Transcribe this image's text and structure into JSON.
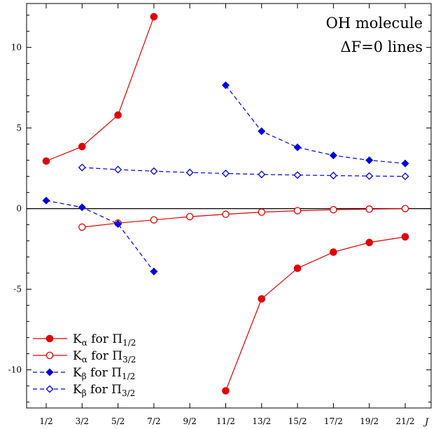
{
  "chart_data": {
    "type": "line",
    "title": "",
    "annotation": [
      "OH molecule",
      "ΔF=0 lines"
    ],
    "xlabel": "J",
    "ylabel": "",
    "categories": [
      "1/2",
      "3/2",
      "5/2",
      "7/2",
      "9/2",
      "11/2",
      "13/2",
      "15/2",
      "17/2",
      "19/2",
      "21/2"
    ],
    "yticks": [
      10,
      5,
      0,
      -5,
      -10
    ],
    "ylim": [
      -12.4,
      12.4
    ],
    "grid": false,
    "zero_line": true,
    "legend_position": "bottom-left",
    "series": [
      {
        "name": "Kα for Π1/2",
        "label_main": "K",
        "label_sub1": "α",
        "label_mid": " for Π",
        "label_sub2": "1/2",
        "color": "#e00000",
        "dashed": false,
        "marker": "filled-circle",
        "points": [
          [
            0,
            2.95
          ],
          [
            1,
            3.85
          ],
          [
            2,
            5.8
          ],
          [
            3,
            11.9
          ]
        ]
      },
      {
        "name": "Kα for Π1/2",
        "legend": false,
        "color": "#e00000",
        "dashed": false,
        "marker": "filled-circle",
        "points": [
          [
            5,
            -11.3
          ],
          [
            6,
            -5.6
          ],
          [
            7,
            -3.7
          ],
          [
            8,
            -2.7
          ],
          [
            9,
            -2.1
          ],
          [
            10,
            -1.75
          ]
        ]
      },
      {
        "name": "Kα for Π3/2",
        "label_main": "K",
        "label_sub1": "α",
        "label_mid": " for Π",
        "label_sub2": "3/2",
        "color": "#e00000",
        "dashed": false,
        "marker": "open-circle",
        "points": [
          [
            1,
            -1.15
          ],
          [
            2,
            -0.9
          ],
          [
            3,
            -0.7
          ],
          [
            4,
            -0.5
          ],
          [
            5,
            -0.35
          ],
          [
            6,
            -0.22
          ],
          [
            7,
            -0.13
          ],
          [
            8,
            -0.07
          ],
          [
            9,
            -0.03
          ],
          [
            10,
            0.0
          ]
        ]
      },
      {
        "name": "Kβ for Π1/2",
        "label_main": "K",
        "label_sub1": "β",
        "label_mid": " for Π",
        "label_sub2": "1/2",
        "color": "#0000e0",
        "dashed": true,
        "marker": "filled-diamond",
        "points": [
          [
            0,
            0.5
          ],
          [
            1,
            0.08
          ],
          [
            2,
            -0.95
          ],
          [
            3,
            -3.9
          ]
        ]
      },
      {
        "name": "Kβ for Π1/2",
        "legend": false,
        "color": "#0000e0",
        "dashed": true,
        "marker": "filled-diamond",
        "points": [
          [
            5,
            7.65
          ],
          [
            6,
            4.8
          ],
          [
            7,
            3.8
          ],
          [
            8,
            3.3
          ],
          [
            9,
            3.0
          ],
          [
            10,
            2.8
          ]
        ]
      },
      {
        "name": "Kβ for Π3/2",
        "label_main": "K",
        "label_sub1": "β",
        "label_mid": " for Π",
        "label_sub2": "3/2",
        "color": "#0000e0",
        "dashed": true,
        "marker": "open-diamond",
        "points": [
          [
            1,
            2.55
          ],
          [
            2,
            2.42
          ],
          [
            3,
            2.32
          ],
          [
            4,
            2.24
          ],
          [
            5,
            2.18
          ],
          [
            6,
            2.12
          ],
          [
            7,
            2.08
          ],
          [
            8,
            2.05
          ],
          [
            9,
            2.02
          ],
          [
            10,
            2.0
          ]
        ]
      }
    ]
  }
}
